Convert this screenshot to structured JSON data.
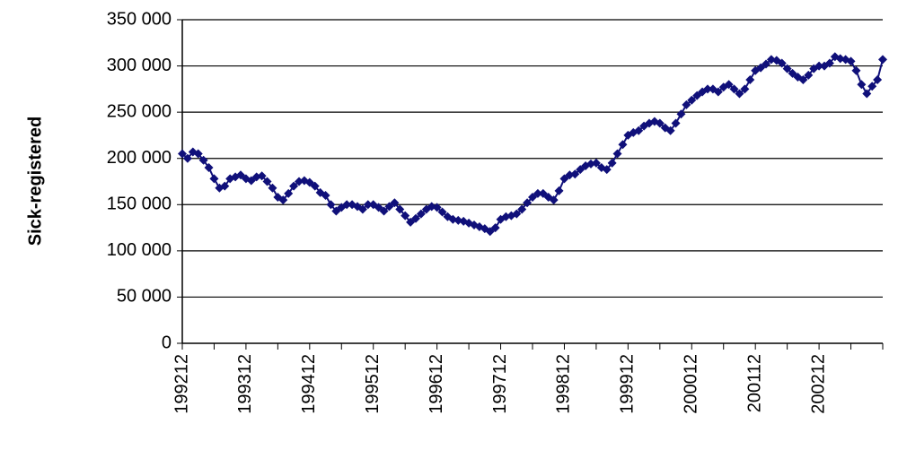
{
  "chart_data": {
    "type": "line",
    "y_label": "Sick-registered",
    "color": "#10107a",
    "grid": true,
    "ylim": [
      0,
      350000
    ],
    "yticks": [
      0,
      {
        "value": 50000,
        "label": "50 000"
      },
      {
        "value": 100000,
        "label": "100 000"
      },
      {
        "value": 150000,
        "label": "150 000"
      },
      {
        "value": 200000,
        "label": "200 000"
      },
      {
        "value": 250000,
        "label": "250 000"
      },
      {
        "value": 300000,
        "label": "300 000"
      },
      {
        "value": 350000,
        "label": "350 000"
      }
    ],
    "categories": [
      "199212",
      null,
      null,
      null,
      null,
      null,
      null,
      null,
      null,
      null,
      null,
      null,
      "199312",
      null,
      null,
      null,
      null,
      null,
      null,
      null,
      null,
      null,
      null,
      null,
      "199412",
      null,
      null,
      null,
      null,
      null,
      null,
      null,
      null,
      null,
      null,
      null,
      "199512",
      null,
      null,
      null,
      null,
      null,
      null,
      null,
      null,
      null,
      null,
      null,
      "199612",
      null,
      null,
      null,
      null,
      null,
      null,
      null,
      null,
      null,
      null,
      null,
      "199712",
      null,
      null,
      null,
      null,
      null,
      null,
      null,
      null,
      null,
      null,
      null,
      "199812",
      null,
      null,
      null,
      null,
      null,
      null,
      null,
      null,
      null,
      null,
      null,
      "199912",
      null,
      null,
      null,
      null,
      null,
      null,
      null,
      null,
      null,
      null,
      null,
      "200012",
      null,
      null,
      null,
      null,
      null,
      null,
      null,
      null,
      null,
      null,
      null,
      "200112",
      null,
      null,
      null,
      null,
      null,
      null,
      null,
      null,
      null,
      null,
      null,
      "200212",
      null,
      null,
      null,
      null,
      null,
      null,
      null,
      null,
      null,
      null,
      null,
      null
    ],
    "values": [
      205000,
      200000,
      207000,
      205000,
      198000,
      190000,
      178000,
      168000,
      170000,
      178000,
      180000,
      182000,
      178000,
      176000,
      180000,
      181000,
      175000,
      168000,
      158000,
      155000,
      162000,
      170000,
      175000,
      176000,
      174000,
      170000,
      163000,
      160000,
      150000,
      143000,
      147000,
      150000,
      150000,
      148000,
      145000,
      150000,
      150000,
      147000,
      143000,
      148000,
      152000,
      145000,
      138000,
      131000,
      135000,
      140000,
      145000,
      148000,
      147000,
      142000,
      137000,
      134000,
      133000,
      132000,
      130000,
      128000,
      126000,
      124000,
      121000,
      125000,
      134000,
      137000,
      138000,
      140000,
      145000,
      152000,
      158000,
      162000,
      162000,
      158000,
      155000,
      165000,
      178000,
      182000,
      183000,
      188000,
      192000,
      194000,
      195000,
      190000,
      188000,
      195000,
      205000,
      215000,
      225000,
      228000,
      230000,
      235000,
      238000,
      240000,
      238000,
      233000,
      230000,
      238000,
      248000,
      258000,
      263000,
      268000,
      272000,
      275000,
      275000,
      272000,
      277000,
      280000,
      275000,
      270000,
      275000,
      285000,
      295000,
      298000,
      302000,
      307000,
      306000,
      303000,
      297000,
      292000,
      288000,
      285000,
      290000,
      297000,
      300000,
      300000,
      303000,
      310000,
      308000,
      307000,
      305000,
      295000,
      280000,
      270000,
      278000,
      285000,
      307000
    ]
  }
}
